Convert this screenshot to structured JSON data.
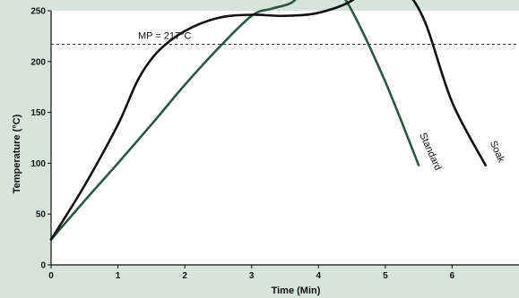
{
  "chart_data": {
    "type": "line",
    "xlabel": "Time (Min)",
    "ylabel": "Temperature (°C)",
    "xlim": [
      0,
      7
    ],
    "ylim": [
      0,
      250
    ],
    "x_ticks": [
      "0",
      "1",
      "2",
      "3",
      "4",
      "5",
      "6"
    ],
    "y_ticks": [
      "0",
      "50",
      "100",
      "150",
      "200",
      "250"
    ],
    "reference_line": {
      "label": "MP = 217°C",
      "y": 217
    },
    "grid": false,
    "series": [
      {
        "name": "Standard",
        "color": "#2f5542",
        "x": [
          0,
          0.5,
          1,
          1.5,
          2,
          2.5,
          3,
          3.3,
          3.6,
          3.8,
          4,
          4.2,
          4.5,
          5,
          5.5
        ],
        "y": [
          25,
          63,
          100,
          138,
          177,
          213,
          245,
          252,
          258,
          272,
          283,
          278,
          250,
          180,
          98
        ]
      },
      {
        "name": "Soak",
        "color": "#111111",
        "x": [
          0,
          0.5,
          1,
          1.3,
          1.6,
          2,
          2.5,
          3,
          3.5,
          4,
          4.5,
          4.8,
          5,
          5.3,
          5.6,
          6,
          6.5
        ],
        "y": [
          25,
          78,
          138,
          182,
          210,
          230,
          243,
          246,
          245,
          248,
          260,
          280,
          282,
          270,
          238,
          160,
          98
        ]
      }
    ]
  }
}
